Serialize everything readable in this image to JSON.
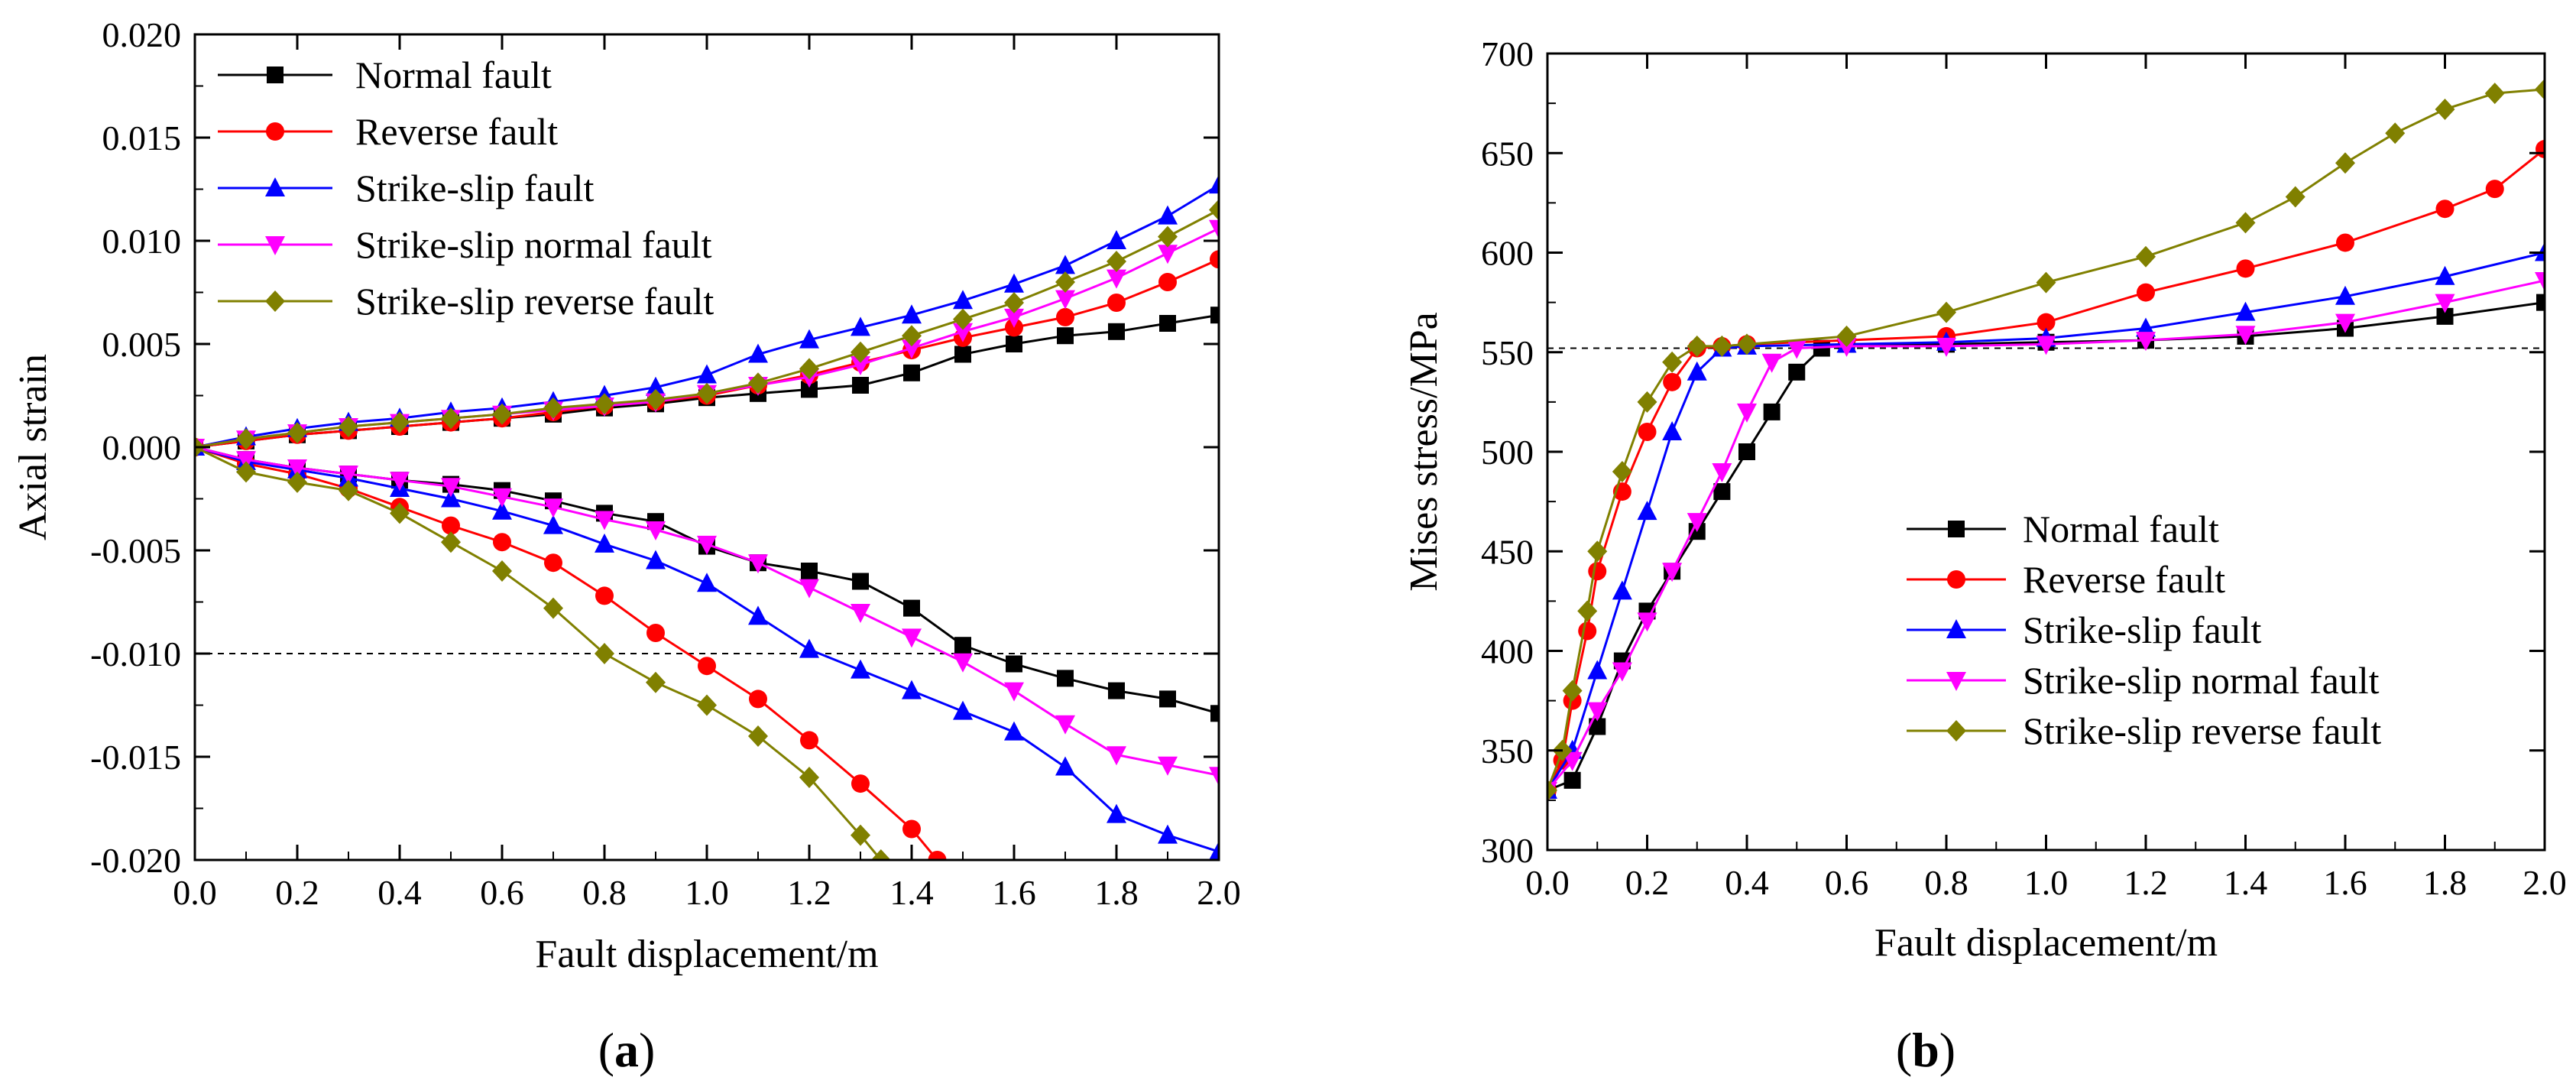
{
  "panels": [
    {
      "id": "a",
      "label_open": "(",
      "label_letter": "a",
      "label_close": ")"
    },
    {
      "id": "b",
      "label_open": "(",
      "label_letter": "b",
      "label_close": ")"
    }
  ],
  "colors": {
    "normal": "#000000",
    "reverse": "#ff0000",
    "strike_slip": "#0000ff",
    "strike_slip_normal": "#ff00ff",
    "strike_slip_reverse": "#808000",
    "reference_line": "#000000"
  },
  "chart_data": [
    {
      "type": "line",
      "panel": "a",
      "title": "",
      "xlabel": "Fault displacement/m",
      "ylabel": "Axial strain",
      "xlim": [
        0.0,
        2.0
      ],
      "ylim": [
        -0.02,
        0.02
      ],
      "xticks": [
        "0.0",
        "0.2",
        "0.4",
        "0.6",
        "0.8",
        "1.0",
        "1.2",
        "1.4",
        "1.6",
        "1.8",
        "2.0"
      ],
      "yticks": [
        "-0.020",
        "-0.015",
        "-0.010",
        "-0.005",
        "0.000",
        "0.005",
        "0.010",
        "0.015",
        "0.020"
      ],
      "grid": false,
      "legend_position": "top-left",
      "reference_line": {
        "orientation": "horizontal",
        "y": -0.01,
        "style": "dashed"
      },
      "series": [
        {
          "name": "Normal fault",
          "marker": "square",
          "color_key": "normal",
          "x": [
            0.0,
            0.1,
            0.2,
            0.3,
            0.4,
            0.5,
            0.6,
            0.7,
            0.8,
            0.9,
            1.0,
            1.1,
            1.2,
            1.3,
            1.4,
            1.5,
            1.6,
            1.7,
            1.8,
            1.9,
            2.0
          ],
          "y": [
            0.0,
            0.0003,
            0.0006,
            0.0008,
            0.001,
            0.0012,
            0.0014,
            0.0016,
            0.0019,
            0.0021,
            0.0024,
            0.0026,
            0.0028,
            0.003,
            0.0036,
            0.0045,
            0.005,
            0.0054,
            0.0056,
            0.006,
            0.0064
          ]
        },
        {
          "name": "Normal fault",
          "marker": "square",
          "color_key": "normal",
          "x": [
            0.0,
            0.1,
            0.2,
            0.3,
            0.4,
            0.5,
            0.6,
            0.7,
            0.8,
            0.9,
            1.0,
            1.1,
            1.2,
            1.3,
            1.4,
            1.5,
            1.6,
            1.7,
            1.8,
            1.9,
            2.0
          ],
          "y": [
            0.0,
            -0.0006,
            -0.001,
            -0.0013,
            -0.0016,
            -0.0018,
            -0.0021,
            -0.0026,
            -0.0032,
            -0.0036,
            -0.0048,
            -0.0056,
            -0.006,
            -0.0065,
            -0.0078,
            -0.0096,
            -0.0105,
            -0.0112,
            -0.0118,
            -0.0122,
            -0.0129
          ]
        },
        {
          "name": "Reverse fault",
          "marker": "circle",
          "color_key": "reverse",
          "x": [
            0.0,
            0.1,
            0.2,
            0.3,
            0.4,
            0.5,
            0.6,
            0.7,
            0.8,
            0.9,
            1.0,
            1.1,
            1.2,
            1.3,
            1.4,
            1.5,
            1.6,
            1.7,
            1.8,
            1.9,
            2.0
          ],
          "y": [
            0.0,
            0.0003,
            0.0006,
            0.0008,
            0.001,
            0.0012,
            0.0014,
            0.0017,
            0.002,
            0.0022,
            0.0025,
            0.003,
            0.0035,
            0.0041,
            0.0047,
            0.0053,
            0.0058,
            0.0063,
            0.007,
            0.008,
            0.0091
          ]
        },
        {
          "name": "Reverse fault",
          "marker": "circle",
          "color_key": "reverse",
          "x": [
            0.0,
            0.1,
            0.2,
            0.3,
            0.4,
            0.5,
            0.6,
            0.7,
            0.8,
            0.9,
            1.0,
            1.1,
            1.2,
            1.3,
            1.4,
            1.45
          ],
          "y": [
            0.0,
            -0.0008,
            -0.0013,
            -0.002,
            -0.0029,
            -0.0038,
            -0.0046,
            -0.0056,
            -0.0072,
            -0.009,
            -0.0106,
            -0.0122,
            -0.0142,
            -0.0163,
            -0.0185,
            -0.02
          ]
        },
        {
          "name": "Strike-slip fault",
          "marker": "triangle-up",
          "color_key": "strike_slip",
          "x": [
            0.0,
            0.1,
            0.2,
            0.3,
            0.4,
            0.5,
            0.6,
            0.7,
            0.8,
            0.9,
            1.0,
            1.1,
            1.2,
            1.3,
            1.4,
            1.5,
            1.6,
            1.7,
            1.8,
            1.9,
            2.0
          ],
          "y": [
            0.0,
            0.0005,
            0.0009,
            0.0012,
            0.0014,
            0.0017,
            0.0019,
            0.0022,
            0.0025,
            0.0029,
            0.0035,
            0.0045,
            0.0052,
            0.0058,
            0.0064,
            0.0071,
            0.0079,
            0.0088,
            0.01,
            0.0112,
            0.0127
          ]
        },
        {
          "name": "Strike-slip fault",
          "marker": "triangle-up",
          "color_key": "strike_slip",
          "x": [
            0.0,
            0.1,
            0.2,
            0.3,
            0.4,
            0.5,
            0.6,
            0.7,
            0.8,
            0.9,
            1.0,
            1.1,
            1.2,
            1.3,
            1.4,
            1.5,
            1.6,
            1.7,
            1.8,
            1.9,
            2.0
          ],
          "y": [
            0.0,
            -0.0007,
            -0.0011,
            -0.0015,
            -0.002,
            -0.0025,
            -0.0031,
            -0.0038,
            -0.0047,
            -0.0055,
            -0.0066,
            -0.0082,
            -0.0098,
            -0.0108,
            -0.0118,
            -0.0128,
            -0.0138,
            -0.0155,
            -0.0178,
            -0.0188,
            -0.0196
          ]
        },
        {
          "name": "Strike-slip normal fault",
          "marker": "triangle-down",
          "color_key": "strike_slip_normal",
          "x": [
            0.0,
            0.1,
            0.2,
            0.3,
            0.4,
            0.5,
            0.6,
            0.7,
            0.8,
            0.9,
            1.0,
            1.1,
            1.2,
            1.3,
            1.4,
            1.5,
            1.6,
            1.7,
            1.8,
            1.9,
            2.0
          ],
          "y": [
            0.0,
            0.0004,
            0.0007,
            0.001,
            0.0012,
            0.0014,
            0.0016,
            0.0018,
            0.002,
            0.0022,
            0.0026,
            0.003,
            0.0034,
            0.004,
            0.0048,
            0.0056,
            0.0063,
            0.0072,
            0.0082,
            0.0094,
            0.0106
          ]
        },
        {
          "name": "Strike-slip normal fault",
          "marker": "triangle-down",
          "color_key": "strike_slip_normal",
          "x": [
            0.0,
            0.1,
            0.2,
            0.3,
            0.4,
            0.5,
            0.6,
            0.7,
            0.8,
            0.9,
            1.0,
            1.1,
            1.2,
            1.3,
            1.4,
            1.5,
            1.6,
            1.7,
            1.8,
            1.9,
            2.0
          ],
          "y": [
            0.0,
            -0.0006,
            -0.001,
            -0.0013,
            -0.0016,
            -0.0019,
            -0.0024,
            -0.0029,
            -0.0035,
            -0.004,
            -0.0047,
            -0.0056,
            -0.0068,
            -0.008,
            -0.0092,
            -0.0104,
            -0.0118,
            -0.0134,
            -0.0149,
            -0.0154,
            -0.0159
          ]
        },
        {
          "name": "Strike-slip reverse fault",
          "marker": "diamond",
          "color_key": "strike_slip_reverse",
          "x": [
            0.0,
            0.1,
            0.2,
            0.3,
            0.4,
            0.5,
            0.6,
            0.7,
            0.8,
            0.9,
            1.0,
            1.1,
            1.2,
            1.3,
            1.4,
            1.5,
            1.6,
            1.7,
            1.8,
            1.9,
            2.0
          ],
          "y": [
            0.0,
            0.0004,
            0.0007,
            0.001,
            0.0012,
            0.0014,
            0.0016,
            0.0019,
            0.0021,
            0.0023,
            0.0026,
            0.0031,
            0.0038,
            0.0046,
            0.0054,
            0.0062,
            0.007,
            0.008,
            0.009,
            0.0102,
            0.0115
          ]
        },
        {
          "name": "Strike-slip reverse fault",
          "marker": "diamond",
          "color_key": "strike_slip_reverse",
          "x": [
            0.0,
            0.1,
            0.2,
            0.3,
            0.4,
            0.5,
            0.6,
            0.7,
            0.8,
            0.9,
            1.0,
            1.1,
            1.2,
            1.3,
            1.34
          ],
          "y": [
            0.0,
            -0.0012,
            -0.0017,
            -0.0021,
            -0.0032,
            -0.0046,
            -0.006,
            -0.0078,
            -0.01,
            -0.0114,
            -0.0125,
            -0.014,
            -0.016,
            -0.0188,
            -0.02
          ]
        }
      ]
    },
    {
      "type": "line",
      "panel": "b",
      "title": "",
      "xlabel": "Fault displacement/m",
      "ylabel": "Mises stress/MPa",
      "xlim": [
        0.0,
        2.0
      ],
      "ylim": [
        300,
        700
      ],
      "xticks": [
        "0.0",
        "0.2",
        "0.4",
        "0.6",
        "0.8",
        "1.0",
        "1.2",
        "1.4",
        "1.6",
        "1.8",
        "2.0"
      ],
      "yticks": [
        "300",
        "350",
        "400",
        "450",
        "500",
        "550",
        "600",
        "650",
        "700"
      ],
      "grid": false,
      "legend_position": "lower-center",
      "reference_line": {
        "orientation": "horizontal",
        "y": 552,
        "style": "dashed"
      },
      "series": [
        {
          "name": "Normal fault",
          "marker": "square",
          "color_key": "normal",
          "x": [
            0.0,
            0.05,
            0.1,
            0.15,
            0.2,
            0.25,
            0.3,
            0.35,
            0.4,
            0.45,
            0.5,
            0.55,
            0.6,
            0.8,
            1.0,
            1.2,
            1.4,
            1.6,
            1.8,
            2.0
          ],
          "y": [
            330,
            335,
            362,
            395,
            420,
            440,
            460,
            480,
            500,
            520,
            540,
            552,
            554,
            554,
            555,
            556,
            558,
            562,
            568,
            575
          ]
        },
        {
          "name": "Reverse fault",
          "marker": "circle",
          "color_key": "reverse",
          "x": [
            0.0,
            0.03,
            0.05,
            0.08,
            0.1,
            0.15,
            0.2,
            0.25,
            0.3,
            0.35,
            0.4,
            0.6,
            0.8,
            1.0,
            1.2,
            1.4,
            1.6,
            1.8,
            1.9,
            2.0
          ],
          "y": [
            330,
            345,
            375,
            410,
            440,
            480,
            510,
            535,
            552,
            553,
            554,
            556,
            558,
            565,
            580,
            592,
            605,
            622,
            632,
            652
          ]
        },
        {
          "name": "Strike-slip fault",
          "marker": "triangle-up",
          "color_key": "strike_slip",
          "x": [
            0.0,
            0.05,
            0.1,
            0.15,
            0.2,
            0.25,
            0.3,
            0.35,
            0.4,
            0.6,
            0.8,
            1.0,
            1.2,
            1.4,
            1.6,
            1.8,
            2.0
          ],
          "y": [
            330,
            350,
            390,
            430,
            470,
            510,
            540,
            552,
            553,
            554,
            555,
            557,
            562,
            570,
            578,
            588,
            600
          ]
        },
        {
          "name": "Strike-slip normal fault",
          "marker": "triangle-down",
          "color_key": "strike_slip_normal",
          "x": [
            0.0,
            0.05,
            0.1,
            0.15,
            0.2,
            0.25,
            0.3,
            0.35,
            0.4,
            0.45,
            0.5,
            0.6,
            0.8,
            1.0,
            1.2,
            1.4,
            1.6,
            1.8,
            2.0
          ],
          "y": [
            330,
            345,
            370,
            390,
            415,
            440,
            465,
            490,
            520,
            545,
            552,
            553,
            553,
            554,
            556,
            559,
            565,
            575,
            586
          ]
        },
        {
          "name": "Strike-slip reverse fault",
          "marker": "diamond",
          "color_key": "strike_slip_reverse",
          "x": [
            0.0,
            0.03,
            0.05,
            0.08,
            0.1,
            0.15,
            0.2,
            0.25,
            0.3,
            0.35,
            0.4,
            0.6,
            0.8,
            1.0,
            1.2,
            1.4,
            1.5,
            1.6,
            1.7,
            1.8,
            1.9,
            2.0
          ],
          "y": [
            330,
            350,
            380,
            420,
            450,
            490,
            525,
            545,
            553,
            553,
            554,
            558,
            570,
            585,
            598,
            615,
            628,
            645,
            660,
            672,
            680,
            682
          ]
        }
      ]
    }
  ]
}
